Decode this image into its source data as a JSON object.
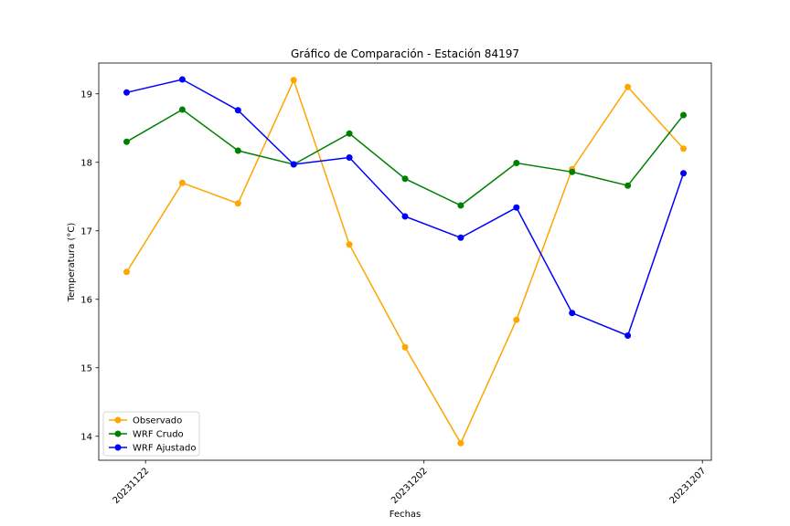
{
  "chart_data": {
    "type": "line",
    "title": "Gráfico de Comparación - Estación 84197",
    "xlabel": "Fechas",
    "ylabel": "Temperatura (°C)",
    "x_ticks": [
      "20231122",
      "20231202",
      "20231207"
    ],
    "ylim": [
      13.65,
      19.45
    ],
    "y_ticks": [
      14,
      15,
      16,
      17,
      18,
      19
    ],
    "legend_position": "lower-left",
    "grid": false,
    "series": [
      {
        "name": "Observado",
        "color": "#ffa500",
        "values": [
          16.4,
          17.7,
          17.4,
          19.2,
          16.8,
          15.3,
          13.9,
          15.7,
          17.9,
          19.1,
          18.2
        ]
      },
      {
        "name": "WRF Crudo",
        "color": "#008000",
        "values": [
          18.3,
          18.77,
          18.17,
          17.97,
          18.42,
          17.76,
          17.37,
          17.99,
          17.86,
          17.66,
          18.69
        ]
      },
      {
        "name": "WRF Ajustado",
        "color": "#0000ff",
        "values": [
          19.02,
          19.21,
          18.76,
          17.97,
          18.07,
          17.21,
          16.9,
          17.34,
          15.8,
          15.47,
          17.84
        ]
      }
    ]
  }
}
